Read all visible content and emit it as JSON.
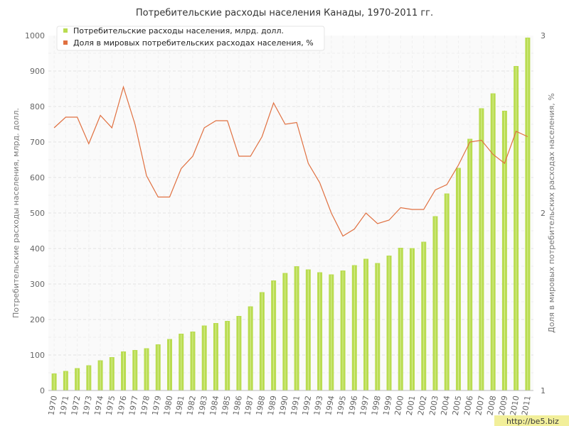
{
  "chart_data": {
    "type": "bar",
    "title": "Потребительские расходы населения Канады, 1970-2011 гг.",
    "ylabel": "Потребительские расходы населения, млрд. долл.",
    "y2label": "Доля в мировых потребительских расходах населения, %",
    "ylim": [
      0,
      1000
    ],
    "y2lim": [
      1,
      3
    ],
    "yticks": [
      "0",
      "100",
      "200",
      "300",
      "400",
      "500",
      "600",
      "700",
      "800",
      "900",
      "1000"
    ],
    "y2ticks": [
      "1",
      "2",
      "3"
    ],
    "grid": true,
    "legend_position": "top-left",
    "categories": [
      "1970",
      "1971",
      "1972",
      "1973",
      "1974",
      "1975",
      "1976",
      "1977",
      "1978",
      "1979",
      "1980",
      "1981",
      "1982",
      "1983",
      "1984",
      "1985",
      "1986",
      "1987",
      "1988",
      "1989",
      "1990",
      "1991",
      "1992",
      "1993",
      "1994",
      "1995",
      "1996",
      "1997",
      "1998",
      "1999",
      "2000",
      "2001",
      "2002",
      "2003",
      "2004",
      "2005",
      "2006",
      "2007",
      "2008",
      "2009",
      "2010",
      "2011"
    ],
    "series": [
      {
        "name": "Потребительские расходы населения, млрд. долл.",
        "type": "bar",
        "axis": "left",
        "color": "#b9dc50",
        "values": [
          48,
          55,
          63,
          71,
          85,
          94,
          110,
          114,
          119,
          130,
          145,
          160,
          166,
          183,
          190,
          196,
          210,
          237,
          277,
          310,
          331,
          350,
          341,
          333,
          327,
          338,
          353,
          371,
          359,
          380,
          402,
          401,
          419,
          491,
          555,
          627,
          709,
          795,
          837,
          788,
          914,
          994
        ]
      },
      {
        "name": "Доля в мировых потребительских расходах населения, %",
        "type": "line",
        "axis": "right",
        "color": "#e07040",
        "values": [
          2.48,
          2.54,
          2.54,
          2.39,
          2.55,
          2.48,
          2.71,
          2.5,
          2.21,
          2.09,
          2.09,
          2.25,
          2.32,
          2.48,
          2.52,
          2.52,
          2.32,
          2.32,
          2.43,
          2.62,
          2.5,
          2.51,
          2.28,
          2.17,
          2.0,
          1.87,
          1.91,
          2.0,
          1.94,
          1.96,
          2.03,
          2.02,
          2.02,
          2.13,
          2.16,
          2.27,
          2.4,
          2.41,
          2.33,
          2.28,
          2.46,
          2.43
        ]
      }
    ]
  },
  "watermark": "http://be5.biz"
}
